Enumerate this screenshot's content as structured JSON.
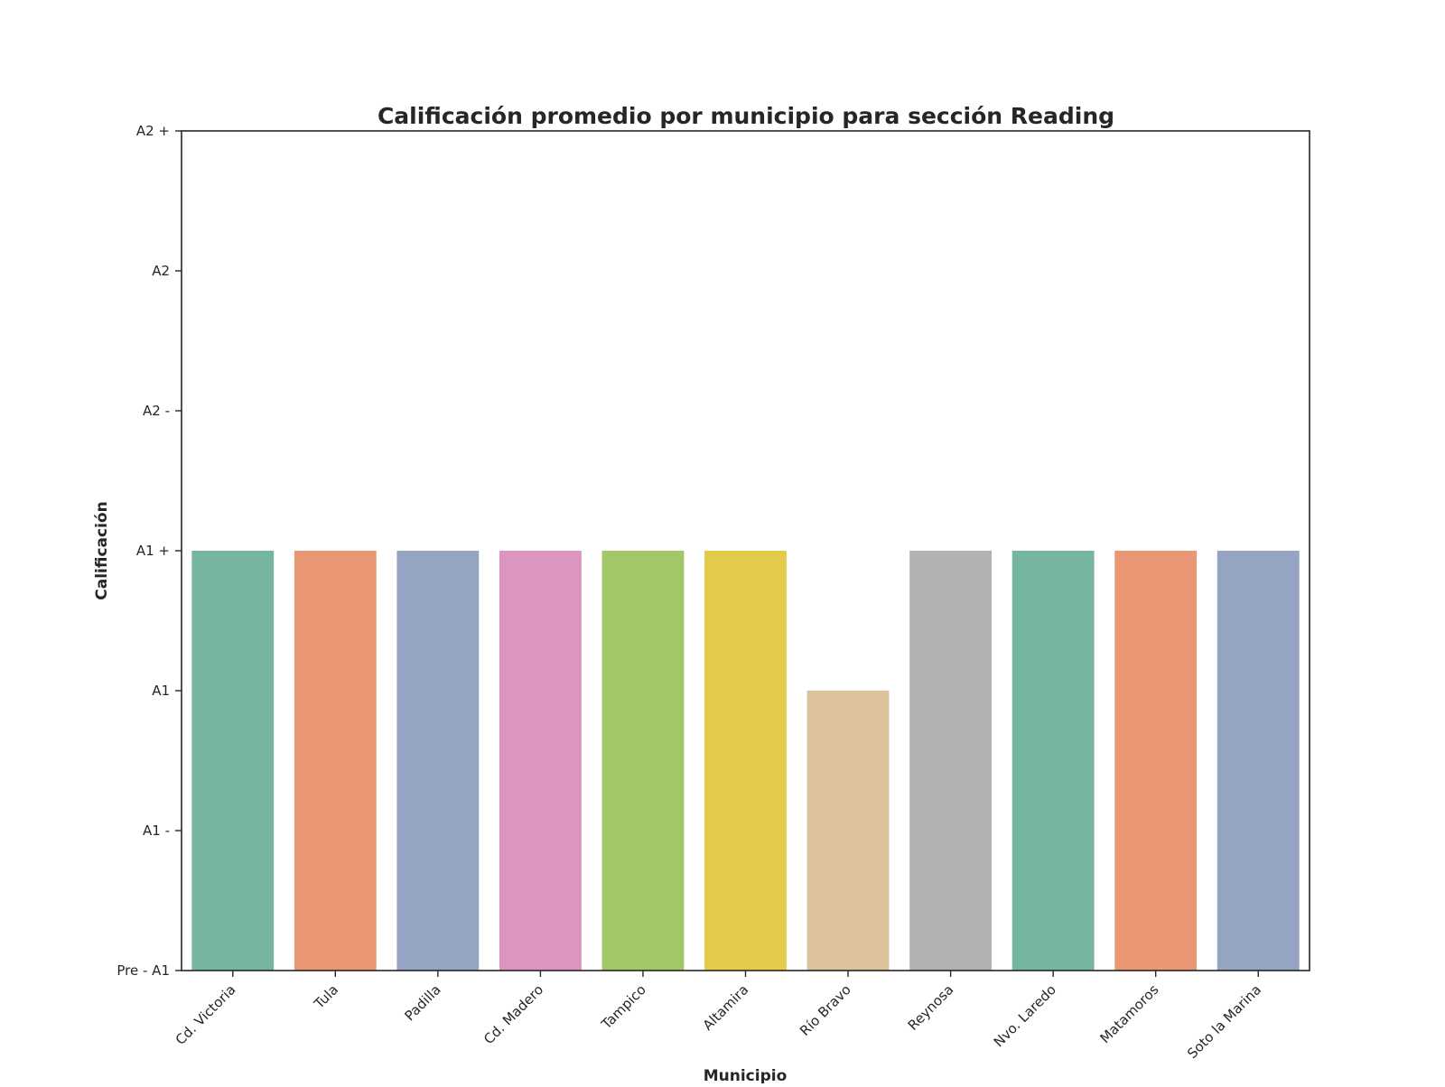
{
  "chart_data": {
    "type": "bar",
    "title": "Calificación promedio por municipio para sección Reading",
    "xlabel": "Municipio",
    "ylabel": "Calificación",
    "categories": [
      "Cd. Victoria",
      "Tula",
      "Padilla",
      "Cd. Madero",
      "Tampico",
      "Altamira",
      "Río Bravo",
      "Reynosa",
      "Nvo. Laredo",
      "Matamoros",
      "Soto la Marina"
    ],
    "values": [
      3,
      3,
      3,
      3,
      3,
      3,
      2,
      3,
      3,
      3,
      3
    ],
    "colors": [
      "#76b6a0",
      "#e99775",
      "#95a4c3",
      "#dc95bf",
      "#a3c766",
      "#e4ca4a",
      "#dbc19c",
      "#b2b2b2",
      "#76b6a0",
      "#e99775",
      "#95a4c3"
    ],
    "yticks": [
      0,
      1,
      2,
      3,
      4,
      5,
      6
    ],
    "ytick_labels": [
      "Pre - A1",
      "A1 -",
      "A1",
      "A1 +",
      "A2 -",
      "A2",
      "A2 +"
    ],
    "ylim": [
      0,
      6
    ],
    "grid": false,
    "legend": "none"
  }
}
